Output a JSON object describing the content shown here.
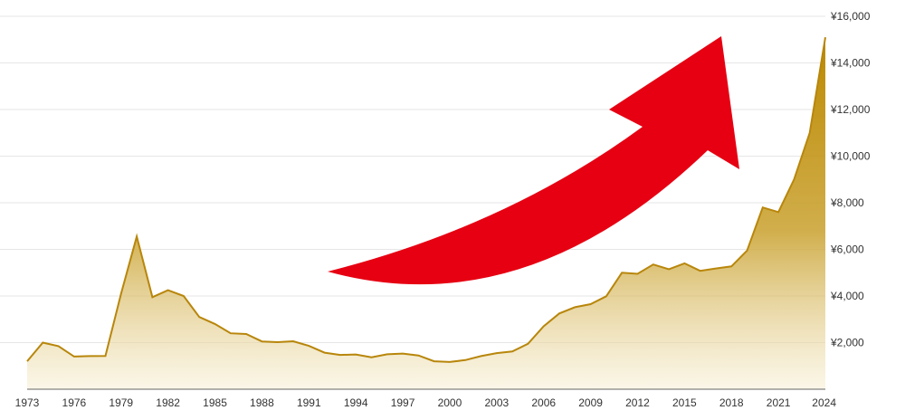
{
  "chart_data": {
    "type": "area",
    "title": "",
    "xlabel": "",
    "ylabel": "",
    "xlim": [
      1973,
      2024
    ],
    "ylim": [
      0,
      16000
    ],
    "grid": true,
    "series_color": "#c8960a",
    "arrow_color": "#e60012",
    "x_ticks": [
      1973,
      1976,
      1979,
      1982,
      1985,
      1988,
      1991,
      1994,
      1997,
      2000,
      2003,
      2006,
      2009,
      2012,
      2015,
      2018,
      2021,
      2024
    ],
    "y_ticks": [
      {
        "value": 2000,
        "label": "¥2,000"
      },
      {
        "value": 4000,
        "label": "¥4,000"
      },
      {
        "value": 6000,
        "label": "¥6,000"
      },
      {
        "value": 8000,
        "label": "¥8,000"
      },
      {
        "value": 10000,
        "label": "¥10,000"
      },
      {
        "value": 12000,
        "label": "¥12,000"
      },
      {
        "value": 14000,
        "label": "¥14,000"
      },
      {
        "value": 16000,
        "label": "¥16,000"
      }
    ],
    "x": [
      1973,
      1974,
      1975,
      1976,
      1977,
      1978,
      1979,
      1980,
      1981,
      1982,
      1983,
      1984,
      1985,
      1986,
      1987,
      1988,
      1989,
      1990,
      1991,
      1992,
      1993,
      1994,
      1995,
      1996,
      1997,
      1998,
      1999,
      2000,
      2001,
      2002,
      2003,
      2004,
      2005,
      2006,
      2007,
      2008,
      2009,
      2010,
      2011,
      2012,
      2013,
      2014,
      2015,
      2016,
      2017,
      2018,
      2019,
      2020,
      2021,
      2022,
      2023,
      2024
    ],
    "values": [
      1200,
      2000,
      1850,
      1400,
      1420,
      1430,
      4100,
      6550,
      3950,
      4250,
      4000,
      3100,
      2800,
      2400,
      2370,
      2050,
      2020,
      2060,
      1860,
      1570,
      1470,
      1490,
      1370,
      1500,
      1530,
      1450,
      1200,
      1170,
      1250,
      1420,
      1550,
      1620,
      1950,
      2700,
      3250,
      3520,
      3650,
      3990,
      5000,
      4950,
      5350,
      5150,
      5400,
      5080,
      5180,
      5270,
      5950,
      7800,
      7600,
      9000,
      11000,
      15100
    ]
  }
}
